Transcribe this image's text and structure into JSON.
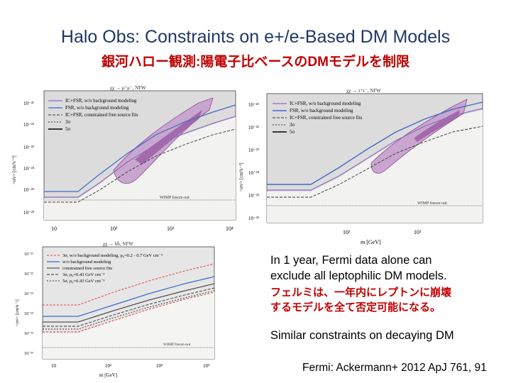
{
  "slide": {
    "title": "Halo Obs: Constraints on e+/e-Based DM Models",
    "subtitle": "銀河ハロー観測:陽電子比ベースのDMモデルを制限",
    "note_en": [
      "In 1 year, Fermi data alone can",
      "exclude all leptophilic DM models."
    ],
    "note_jp": [
      "フェルミは、一年内にレプトンに崩壊",
      "するモデルを全て否定可能になる。"
    ],
    "note2": "Similar constraints on decaying DM",
    "reference": "Fermi: Ackermann+ 2012 ApJ 761, 91"
  },
  "chart_data": [
    {
      "type": "line",
      "channel": "χχ → μ⁺μ⁻, NFW",
      "xscale": "log",
      "yscale": "log",
      "x_ticks": [
        "10",
        "10²",
        "10³",
        "10⁴"
      ],
      "y_ticks": [
        "10⁻²¹",
        "10⁻²²",
        "10⁻²³",
        "10⁻²⁴",
        "10⁻²⁵",
        "10⁻²⁶"
      ],
      "ylabel": "<σv> [cm³s⁻¹]",
      "legend": [
        {
          "label": "IC+FSR, w/o background modeling",
          "color": "#8e6bbf",
          "dash": ""
        },
        {
          "label": "FSR, w/o background modeling",
          "color": "#4169c8",
          "dash": ""
        },
        {
          "label": "IC+FSR, constrained free source fits",
          "color": "#333333",
          "dash": "4,2"
        },
        {
          "label": "3σ",
          "color": "#333333",
          "dash": "2,2"
        },
        {
          "label": "5σ",
          "color": "#000000",
          "dash": ""
        }
      ],
      "annotation": "WIMP freeze-out"
    },
    {
      "type": "line",
      "channel": "χχ → τ⁺τ⁻, NFW",
      "xscale": "log",
      "yscale": "log",
      "x_ticks": [
        "10²",
        "10³"
      ],
      "y_ticks": [
        "10⁻²¹",
        "10⁻²²",
        "10⁻²³",
        "10⁻²⁴",
        "10⁻²⁵",
        "10⁻²⁶"
      ],
      "ylabel": "<σv> [cm³s⁻¹]",
      "xlabel": "m [GeV]",
      "legend": [
        {
          "label": "IC+FSR, w/o background modeling",
          "color": "#8e6bbf",
          "dash": ""
        },
        {
          "label": "FSR, w/o background modeling",
          "color": "#4169c8",
          "dash": ""
        },
        {
          "label": "IC+FSR, constrained free source fits",
          "color": "#333333",
          "dash": "4,2"
        },
        {
          "label": "3σ",
          "color": "#333333",
          "dash": "2,2"
        },
        {
          "label": "5σ",
          "color": "#000000",
          "dash": ""
        }
      ],
      "annotation": "WIMP freeze-out"
    },
    {
      "type": "line",
      "channel": "χχ → bb̄, NFW",
      "xscale": "log",
      "yscale": "log",
      "x_ticks": [
        "10",
        "10²",
        "10³",
        "10⁴"
      ],
      "y_ticks": [
        "10⁻²¹",
        "10⁻²²",
        "10⁻²³",
        "10⁻²⁴",
        "10⁻²⁵",
        "10⁻²⁶"
      ],
      "ylabel": "<σv> [cm³s⁻¹]",
      "xlabel": "m [GeV]",
      "legend": [
        {
          "label": "3σ, w/o background modeling, ρ₀=0.2 - 0.7 GeV cm⁻³",
          "color": "#e0403a",
          "dash": "3,2"
        },
        {
          "label": "w/o background modeling",
          "color": "#4169c8",
          "dash": ""
        },
        {
          "label": "constrained free source fits",
          "color": "#333333",
          "dash": ""
        },
        {
          "label": "3σ, ρ₀=0.43 GeV cm⁻³",
          "color": "#333333",
          "dash": "4,2"
        },
        {
          "label": "5σ, ρ₀=0.43 GeV cm⁻³",
          "color": "#333333",
          "dash": "2,2"
        }
      ],
      "annotation": "WIMP freeze-out"
    }
  ]
}
